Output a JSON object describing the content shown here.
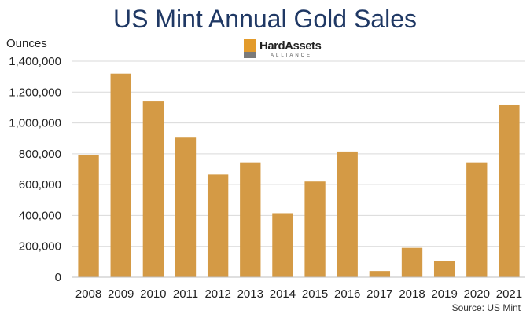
{
  "chart_data": {
    "type": "bar",
    "title": "US Mint Annual Gold Sales",
    "ylabel": "Ounces",
    "xlabel": "",
    "categories": [
      "2008",
      "2009",
      "2010",
      "2011",
      "2012",
      "2013",
      "2014",
      "2015",
      "2016",
      "2017",
      "2018",
      "2019",
      "2020",
      "2021"
    ],
    "values": [
      790000,
      1320000,
      1140000,
      905000,
      665000,
      745000,
      415000,
      620000,
      815000,
      40000,
      190000,
      105000,
      745000,
      1115000
    ],
    "ylim": [
      0,
      1400000
    ],
    "yticks": [
      0,
      200000,
      400000,
      600000,
      800000,
      1000000,
      1200000,
      1400000
    ],
    "ytick_labels": [
      "0",
      "200,000",
      "400,000",
      "600,000",
      "800,000",
      "1,000,000",
      "1,200,000",
      "1,400,000"
    ],
    "grid": true,
    "bar_color": "#d49a45",
    "source": "Source: US Mint"
  },
  "logo": {
    "name": "HardAssets",
    "sub": "ALLIANCE"
  },
  "colors": {
    "title": "#1f3864",
    "grid": "#d9d9d9",
    "axis": "#bfbfbf"
  }
}
